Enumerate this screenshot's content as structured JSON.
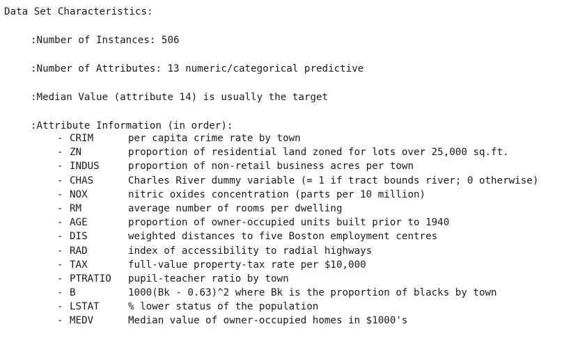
{
  "title": "Data Set Characteristics:",
  "lines": {
    "instances": ":Number of Instances: 506",
    "attributes": ":Number of Attributes: 13 numeric/categorical predictive",
    "median": ":Median Value (attribute 14) is usually the target",
    "attr_header": ":Attribute Information (in order):"
  },
  "attributes": [
    {
      "dash": "-",
      "name": "CRIM",
      "desc": "per capita crime rate by town"
    },
    {
      "dash": "-",
      "name": "ZN",
      "desc": "proportion of residential land zoned for lots over 25,000 sq.ft."
    },
    {
      "dash": "-",
      "name": "INDUS",
      "desc": "proportion of non-retail business acres per town"
    },
    {
      "dash": "-",
      "name": "CHAS",
      "desc": "Charles River dummy variable (= 1 if tract bounds river; 0 otherwise)"
    },
    {
      "dash": "-",
      "name": "NOX",
      "desc": "nitric oxides concentration (parts per 10 million)"
    },
    {
      "dash": "-",
      "name": "RM",
      "desc": "average number of rooms per dwelling"
    },
    {
      "dash": "-",
      "name": "AGE",
      "desc": "proportion of owner-occupied units built prior to 1940"
    },
    {
      "dash": "-",
      "name": "DIS",
      "desc": "weighted distances to five Boston employment centres"
    },
    {
      "dash": "-",
      "name": "RAD",
      "desc": "index of accessibility to radial highways"
    },
    {
      "dash": "-",
      "name": "TAX",
      "desc": "full-value property-tax rate per $10,000"
    },
    {
      "dash": "-",
      "name": "PTRATIO",
      "desc": "pupil-teacher ratio by town"
    },
    {
      "dash": "-",
      "name": "B",
      "desc": "1000(Bk - 0.63)^2 where Bk is the proportion of blacks by town"
    },
    {
      "dash": "-",
      "name": "LSTAT",
      "desc": "% lower status of the population"
    },
    {
      "dash": "-",
      "name": "MEDV",
      "desc": "Median value of owner-occupied homes in $1000's"
    }
  ]
}
